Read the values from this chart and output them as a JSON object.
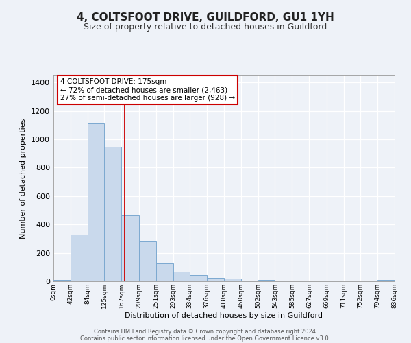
{
  "title": "4, COLTSFOOT DRIVE, GUILDFORD, GU1 1YH",
  "subtitle": "Size of property relative to detached houses in Guildford",
  "xlabel": "Distribution of detached houses by size in Guildford",
  "ylabel": "Number of detached properties",
  "footer_line1": "Contains HM Land Registry data © Crown copyright and database right 2024.",
  "footer_line2": "Contains public sector information licensed under the Open Government Licence v3.0.",
  "bin_edges": [
    0,
    42,
    84,
    125,
    167,
    209,
    251,
    293,
    334,
    376,
    418,
    460,
    502,
    543,
    585,
    627,
    669,
    711,
    752,
    794,
    836
  ],
  "bin_labels": [
    "0sqm",
    "42sqm",
    "84sqm",
    "125sqm",
    "167sqm",
    "209sqm",
    "251sqm",
    "293sqm",
    "334sqm",
    "376sqm",
    "418sqm",
    "460sqm",
    "502sqm",
    "543sqm",
    "585sqm",
    "627sqm",
    "669sqm",
    "711sqm",
    "752sqm",
    "794sqm",
    "836sqm"
  ],
  "bar_heights": [
    10,
    328,
    1110,
    945,
    465,
    280,
    125,
    68,
    45,
    25,
    18,
    0,
    12,
    0,
    0,
    0,
    0,
    0,
    0,
    12
  ],
  "ylim": [
    0,
    1450
  ],
  "yticks": [
    0,
    200,
    400,
    600,
    800,
    1000,
    1200,
    1400
  ],
  "bar_color": "#c9d9ec",
  "bar_edge_color": "#7ca9d0",
  "red_line_x": 175,
  "annotation_title": "4 COLTSFOOT DRIVE: 175sqm",
  "annotation_line1": "← 72% of detached houses are smaller (2,463)",
  "annotation_line2": "27% of semi-detached houses are larger (928) →",
  "annotation_box_color": "#ffffff",
  "annotation_box_edge": "#cc0000",
  "background_color": "#eef2f8",
  "grid_color": "#ffffff",
  "title_fontsize": 11,
  "subtitle_fontsize": 9
}
